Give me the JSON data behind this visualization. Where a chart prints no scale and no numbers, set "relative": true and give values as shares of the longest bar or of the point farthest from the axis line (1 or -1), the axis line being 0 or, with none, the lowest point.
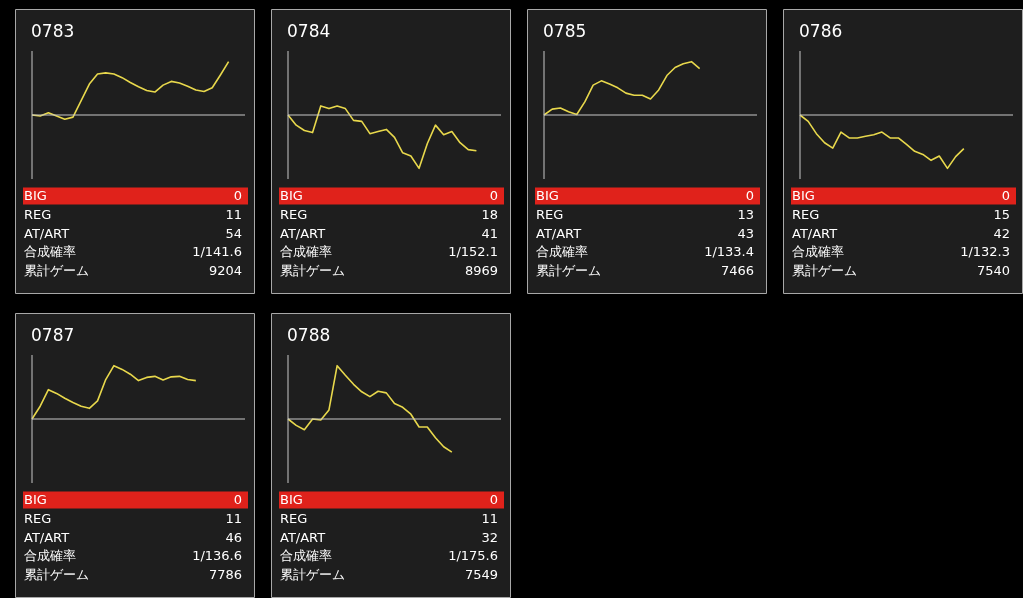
{
  "chart_data": [
    {
      "type": "line",
      "title": "0783",
      "relative": true,
      "categories": [
        null,
        null,
        null,
        null,
        null,
        null,
        null,
        null,
        null,
        null,
        null,
        null,
        null,
        null,
        null,
        null,
        null,
        null,
        null,
        null,
        null,
        null,
        null,
        null,
        null,
        null,
        null
      ],
      "color": "#e8d84c",
      "values": [
        0,
        -0.02,
        0.04,
        -0.02,
        -0.08,
        -0.04,
        0.27,
        0.58,
        0.77,
        0.79,
        0.77,
        0.7,
        0.61,
        0.53,
        0.46,
        0.43,
        0.56,
        0.63,
        0.6,
        0.54,
        0.47,
        0.44,
        0.51,
        0.75,
        1,
        null,
        null
      ],
      "annotations": [
        "BIG",
        "0",
        "REG",
        "11",
        "AT/ART",
        "54",
        "合成確率",
        "1/141.6",
        "累計ゲーム",
        "9204"
      ]
    },
    {
      "type": "line",
      "title": "0784",
      "relative": true,
      "categories": [
        null,
        null,
        null,
        null,
        null,
        null,
        null,
        null,
        null,
        null,
        null,
        null,
        null,
        null,
        null,
        null,
        null,
        null,
        null,
        null,
        null,
        null,
        null,
        null,
        null,
        null,
        null
      ],
      "color": "#e8d84c",
      "values": [
        0,
        -0.19,
        -0.29,
        -0.33,
        0.17,
        0.12,
        0.17,
        0.12,
        -0.1,
        -0.12,
        -0.35,
        -0.31,
        -0.27,
        -0.42,
        -0.71,
        -0.77,
        -1,
        -0.54,
        -0.19,
        -0.37,
        -0.31,
        -0.52,
        -0.65,
        -0.67,
        null,
        null,
        null
      ],
      "annotations": [
        "BIG",
        "0",
        "REG",
        "18",
        "AT/ART",
        "41",
        "合成確率",
        "1/152.1",
        "累計ゲーム",
        "8969"
      ]
    },
    {
      "type": "line",
      "title": "0785",
      "relative": true,
      "categories": [
        null,
        null,
        null,
        null,
        null,
        null,
        null,
        null,
        null,
        null,
        null,
        null,
        null,
        null,
        null,
        null,
        null,
        null,
        null,
        null,
        null,
        null,
        null,
        null,
        null,
        null,
        null
      ],
      "color": "#e8d84c",
      "values": [
        0,
        0.11,
        0.13,
        0.06,
        0.01,
        0.25,
        0.56,
        0.64,
        0.58,
        0.51,
        0.41,
        0.37,
        0.37,
        0.3,
        0.47,
        0.74,
        0.89,
        0.96,
        1,
        0.87,
        null,
        null,
        null,
        null,
        null,
        null,
        null
      ],
      "annotations": [
        "BIG",
        "0",
        "REG",
        "13",
        "AT/ART",
        "43",
        "合成確率",
        "1/133.4",
        "累計ゲーム",
        "7466"
      ]
    },
    {
      "type": "line",
      "title": "0786",
      "relative": true,
      "categories": [
        null,
        null,
        null,
        null,
        null,
        null,
        null,
        null,
        null,
        null,
        null,
        null,
        null,
        null,
        null,
        null,
        null,
        null,
        null,
        null,
        null,
        null,
        null,
        null,
        null,
        null,
        null
      ],
      "color": "#e8d84c",
      "values": [
        0,
        -0.12,
        -0.35,
        -0.52,
        -0.62,
        -0.32,
        -0.43,
        -0.43,
        -0.4,
        -0.37,
        -0.32,
        -0.43,
        -0.43,
        -0.55,
        -0.68,
        -0.74,
        -0.85,
        -0.77,
        -1,
        -0.78,
        -0.63,
        null,
        null,
        null,
        null,
        null,
        null
      ],
      "annotations": [
        "BIG",
        "0",
        "REG",
        "15",
        "AT/ART",
        "42",
        "合成確率",
        "1/132.3",
        "累計ゲーム",
        "7540"
      ]
    },
    {
      "type": "line",
      "title": "0787",
      "relative": true,
      "categories": [
        null,
        null,
        null,
        null,
        null,
        null,
        null,
        null,
        null,
        null,
        null,
        null,
        null,
        null,
        null,
        null,
        null,
        null,
        null,
        null,
        null,
        null,
        null,
        null,
        null,
        null,
        null
      ],
      "color": "#e8d84c",
      "values": [
        0,
        0.24,
        0.55,
        0.48,
        0.39,
        0.31,
        0.24,
        0.2,
        0.34,
        0.74,
        1,
        0.93,
        0.84,
        0.72,
        0.78,
        0.8,
        0.73,
        0.79,
        0.8,
        0.74,
        0.72,
        null,
        null,
        null,
        null,
        null,
        null
      ],
      "annotations": [
        "BIG",
        "0",
        "REG",
        "11",
        "AT/ART",
        "46",
        "合成確率",
        "1/136.6",
        "累計ゲーム",
        "7786"
      ]
    },
    {
      "type": "line",
      "title": "0788",
      "relative": true,
      "categories": [
        null,
        null,
        null,
        null,
        null,
        null,
        null,
        null,
        null,
        null,
        null,
        null,
        null,
        null,
        null,
        null,
        null,
        null,
        null,
        null,
        null,
        null,
        null,
        null,
        null,
        null,
        null
      ],
      "color": "#e8d84c",
      "values": [
        0,
        -0.12,
        -0.2,
        0,
        -0.02,
        0.17,
        1,
        0.82,
        0.65,
        0.51,
        0.42,
        0.52,
        0.49,
        0.29,
        0.22,
        0.09,
        -0.15,
        -0.15,
        -0.35,
        -0.52,
        -0.62,
        null,
        null,
        null,
        null,
        null,
        null
      ],
      "annotations": [
        "BIG",
        "0",
        "REG",
        "11",
        "AT/ART",
        "32",
        "合成確率",
        "1/175.6",
        "累計ゲーム",
        "7549"
      ]
    }
  ]
}
